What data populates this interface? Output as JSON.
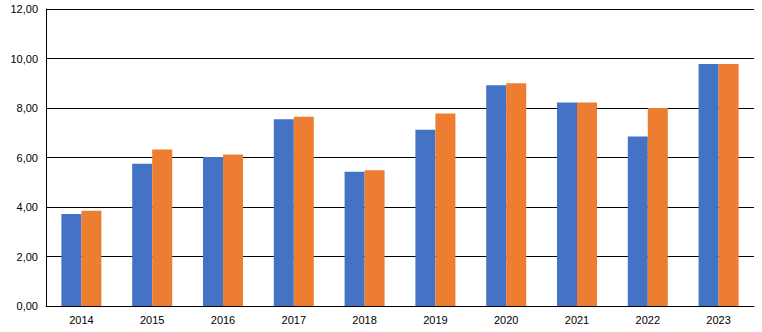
{
  "chart_data": {
    "type": "bar",
    "categories": [
      "2014",
      "2015",
      "2016",
      "2017",
      "2018",
      "2019",
      "2020",
      "2021",
      "2022",
      "2023"
    ],
    "series": [
      {
        "color": "#4472c4",
        "values": [
          3.72,
          5.75,
          6.02,
          7.55,
          5.42,
          7.12,
          8.92,
          8.22,
          6.85,
          9.78
        ]
      },
      {
        "color": "#ed7d31",
        "values": [
          3.85,
          6.32,
          6.12,
          7.65,
          5.48,
          7.78,
          9.0,
          8.22,
          8.0,
          9.78
        ]
      }
    ],
    "ylim": [
      0,
      12
    ],
    "yticks": [
      {
        "value": 0,
        "label": "0,00"
      },
      {
        "value": 2,
        "label": "2,00"
      },
      {
        "value": 4,
        "label": "4,00"
      },
      {
        "value": 6,
        "label": "6,00"
      },
      {
        "value": 8,
        "label": "8,00"
      },
      {
        "value": 10,
        "label": "10,00"
      },
      {
        "value": 12,
        "label": "12,00"
      }
    ],
    "grid": true
  }
}
